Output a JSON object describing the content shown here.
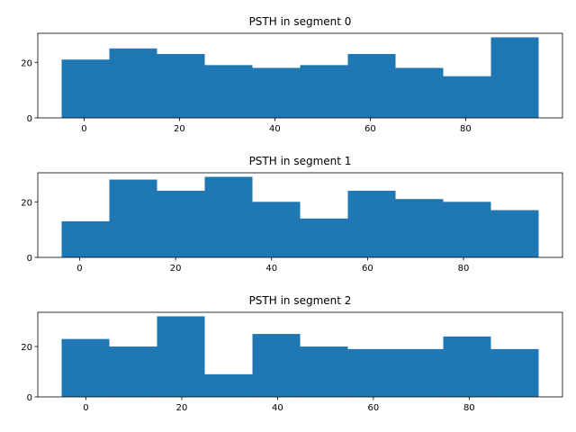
{
  "chart_data": [
    {
      "type": "histogram",
      "title": "PSTH in segment 0",
      "color": "#1f77b4",
      "bins": [
        -4.7,
        5.3,
        15.3,
        25.3,
        35.3,
        45.3,
        55.3,
        65.3,
        75.3,
        85.3,
        95.3
      ],
      "values": [
        21,
        25,
        23,
        19,
        18,
        19,
        23,
        18,
        15,
        29
      ],
      "xlim": [
        -9.7,
        100.3
      ],
      "ylim": [
        0,
        30.45
      ],
      "xticks": [
        0,
        20,
        40,
        60,
        80
      ],
      "yticks": [
        0,
        20
      ]
    },
    {
      "type": "histogram",
      "title": "PSTH in segment 1",
      "color": "#1f77b4",
      "bins": [
        -3.75,
        6.19,
        16.13,
        26.07,
        36.01,
        45.95,
        55.89,
        65.83,
        75.77,
        85.71,
        95.65
      ],
      "values": [
        13,
        28,
        24,
        29,
        20,
        14,
        24,
        21,
        20,
        17
      ],
      "xlim": [
        -8.72,
        100.62
      ],
      "ylim": [
        0,
        30.45
      ],
      "xticks": [
        0,
        20,
        40,
        60,
        80
      ],
      "yticks": [
        0,
        20
      ]
    },
    {
      "type": "histogram",
      "title": "PSTH in segment 2",
      "color": "#1f77b4",
      "bins": [
        -5.07,
        4.89,
        14.84,
        24.8,
        34.76,
        44.72,
        54.67,
        64.63,
        74.59,
        84.54,
        94.5
      ],
      "values": [
        23,
        20,
        32,
        9,
        25,
        20,
        19,
        19,
        24,
        19
      ],
      "xlim": [
        -10.05,
        99.48
      ],
      "ylim": [
        0,
        33.6
      ],
      "xticks": [
        0,
        20,
        40,
        60,
        80
      ],
      "yticks": [
        0,
        20
      ]
    }
  ]
}
